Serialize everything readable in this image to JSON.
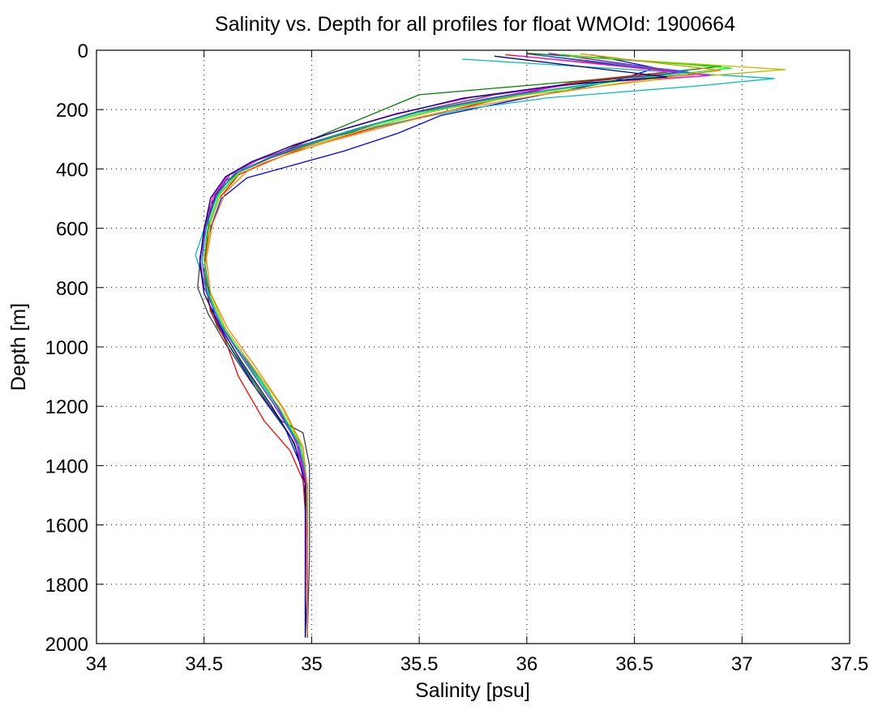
{
  "chart_data": {
    "type": "line",
    "title": "Salinity vs. Depth for all profiles for float WMOId: 1900664",
    "xlabel": "Salinity [psu]",
    "ylabel": "Depth [m]",
    "xlim": [
      34,
      37.5
    ],
    "ylim": [
      0,
      2000
    ],
    "y_reversed": true,
    "grid": true,
    "legend": "none",
    "x_ticks": [
      "34",
      "34.5",
      "35",
      "35.5",
      "36",
      "36.5",
      "37",
      "37.5"
    ],
    "y_ticks": [
      "0",
      "200",
      "400",
      "600",
      "800",
      "1000",
      "1200",
      "1400",
      "1600",
      "1800",
      "2000"
    ],
    "series": [
      {
        "color": "#0000ff",
        "x": [
          36.3,
          36.6,
          36.4,
          36.0,
          35.6,
          35.4,
          35.15,
          34.9,
          34.7,
          34.58,
          34.53,
          34.5,
          34.52,
          34.55,
          34.62,
          34.75,
          34.88,
          34.95,
          34.98,
          34.98,
          34.97
        ],
        "y": [
          15,
          60,
          105,
          160,
          220,
          280,
          340,
          390,
          430,
          500,
          600,
          700,
          800,
          900,
          1000,
          1150,
          1280,
          1400,
          1550,
          1800,
          1975
        ]
      },
      {
        "color": "#008000",
        "x": [
          36.0,
          36.9,
          36.3,
          35.5,
          35.1,
          34.9,
          34.72,
          34.6,
          34.53,
          34.5,
          34.52,
          34.56,
          34.64,
          34.76,
          34.9,
          34.97,
          34.98,
          34.98
        ],
        "y": [
          10,
          55,
          100,
          150,
          270,
          330,
          390,
          440,
          520,
          700,
          850,
          930,
          1020,
          1150,
          1300,
          1420,
          1600,
          1970
        ]
      },
      {
        "color": "#ff0000",
        "x": [
          35.9,
          36.7,
          36.2,
          35.9,
          35.6,
          35.3,
          35.0,
          34.78,
          34.66,
          34.57,
          34.52,
          34.5,
          34.53,
          34.6,
          34.66,
          34.78,
          34.9,
          34.96,
          34.98,
          34.98
        ],
        "y": [
          15,
          70,
          110,
          160,
          210,
          260,
          320,
          380,
          420,
          500,
          600,
          750,
          880,
          980,
          1100,
          1250,
          1350,
          1450,
          1650,
          1970
        ]
      },
      {
        "color": "#00bfbf",
        "x": [
          35.7,
          37.15,
          36.8,
          36.1,
          35.7,
          35.35,
          35.05,
          34.85,
          34.68,
          34.58,
          34.52,
          34.46,
          34.5,
          34.56,
          34.66,
          34.8,
          34.92,
          34.97,
          34.98
        ],
        "y": [
          30,
          95,
          120,
          160,
          200,
          250,
          300,
          350,
          400,
          460,
          560,
          690,
          780,
          900,
          1000,
          1150,
          1300,
          1450,
          1970
        ]
      },
      {
        "color": "#bf00bf",
        "x": [
          36.1,
          36.8,
          36.2,
          35.8,
          35.45,
          35.2,
          34.95,
          34.75,
          34.62,
          34.55,
          34.51,
          34.48,
          34.5,
          34.58,
          34.7,
          34.84,
          34.94,
          34.98,
          34.98
        ],
        "y": [
          10,
          80,
          115,
          165,
          215,
          270,
          320,
          370,
          420,
          490,
          590,
          700,
          800,
          930,
          1050,
          1200,
          1340,
          1480,
          1970
        ]
      },
      {
        "color": "#bfbf00",
        "x": [
          36.2,
          37.2,
          36.6,
          36.0,
          35.6,
          35.3,
          35.05,
          34.82,
          34.67,
          34.58,
          34.53,
          34.51,
          34.53,
          34.6,
          34.72,
          34.86,
          34.95,
          34.98,
          34.98
        ],
        "y": [
          20,
          65,
          100,
          150,
          200,
          255,
          310,
          360,
          410,
          480,
          580,
          700,
          820,
          940,
          1060,
          1200,
          1330,
          1460,
          1970
        ]
      },
      {
        "color": "#404040",
        "x": [
          36.0,
          36.7,
          36.3,
          35.85,
          35.5,
          35.25,
          35.0,
          34.8,
          34.65,
          34.56,
          34.5,
          34.48,
          34.47,
          34.52,
          34.6,
          34.72,
          34.86,
          34.96,
          34.99,
          34.99,
          34.98
        ],
        "y": [
          12,
          75,
          105,
          150,
          205,
          260,
          315,
          365,
          415,
          480,
          600,
          720,
          800,
          890,
          990,
          1120,
          1250,
          1290,
          1400,
          1700,
          1980
        ]
      },
      {
        "color": "#ff00ff",
        "x": [
          35.95,
          36.85,
          36.25,
          35.75,
          35.4,
          35.15,
          34.92,
          34.74,
          34.61,
          34.54,
          34.5,
          34.49,
          34.51,
          34.57,
          34.68,
          34.82,
          34.93,
          34.97,
          34.98
        ],
        "y": [
          18,
          85,
          112,
          158,
          212,
          265,
          318,
          372,
          422,
          495,
          600,
          710,
          810,
          920,
          1040,
          1190,
          1320,
          1460,
          1970
        ]
      },
      {
        "color": "#00ff00",
        "x": [
          36.15,
          36.95,
          36.45,
          35.95,
          35.55,
          35.25,
          35.0,
          34.8,
          34.66,
          34.57,
          34.52,
          34.5,
          34.52,
          34.59,
          34.7,
          34.85,
          34.95,
          34.98,
          34.98
        ],
        "y": [
          14,
          60,
          102,
          152,
          205,
          258,
          312,
          362,
          412,
          485,
          590,
          705,
          815,
          935,
          1055,
          1205,
          1335,
          1470,
          1970
        ]
      },
      {
        "color": "#0080ff",
        "x": [
          36.05,
          36.75,
          36.35,
          35.9,
          35.5,
          35.22,
          34.98,
          34.79,
          34.64,
          34.56,
          34.51,
          34.49,
          34.51,
          34.58,
          34.69,
          34.83,
          34.94,
          34.98,
          34.98
        ],
        "y": [
          16,
          72,
          108,
          155,
          208,
          262,
          315,
          366,
          416,
          488,
          595,
          708,
          812,
          928,
          1048,
          1198,
          1328,
          1465,
          1970
        ]
      },
      {
        "color": "#ff8000",
        "x": [
          36.25,
          36.9,
          36.5,
          36.05,
          35.65,
          35.35,
          35.08,
          34.86,
          34.7,
          34.6,
          34.54,
          34.51,
          34.53,
          34.61,
          34.73,
          34.87,
          34.96,
          34.98,
          34.98
        ],
        "y": [
          12,
          68,
          104,
          152,
          202,
          256,
          308,
          358,
          408,
          478,
          585,
          702,
          818,
          938,
          1058,
          1208,
          1338,
          1475,
          1970
        ]
      },
      {
        "color": "#000080",
        "x": [
          35.85,
          36.65,
          36.15,
          35.7,
          35.38,
          35.12,
          34.9,
          34.72,
          34.6,
          34.53,
          34.5,
          34.48,
          34.5,
          34.57,
          34.67,
          34.81,
          34.92,
          34.97,
          34.97
        ],
        "y": [
          20,
          90,
          118,
          162,
          218,
          272,
          325,
          376,
          426,
          498,
          605,
          715,
          820,
          925,
          1045,
          1195,
          1325,
          1462,
          1980
        ]
      }
    ]
  }
}
